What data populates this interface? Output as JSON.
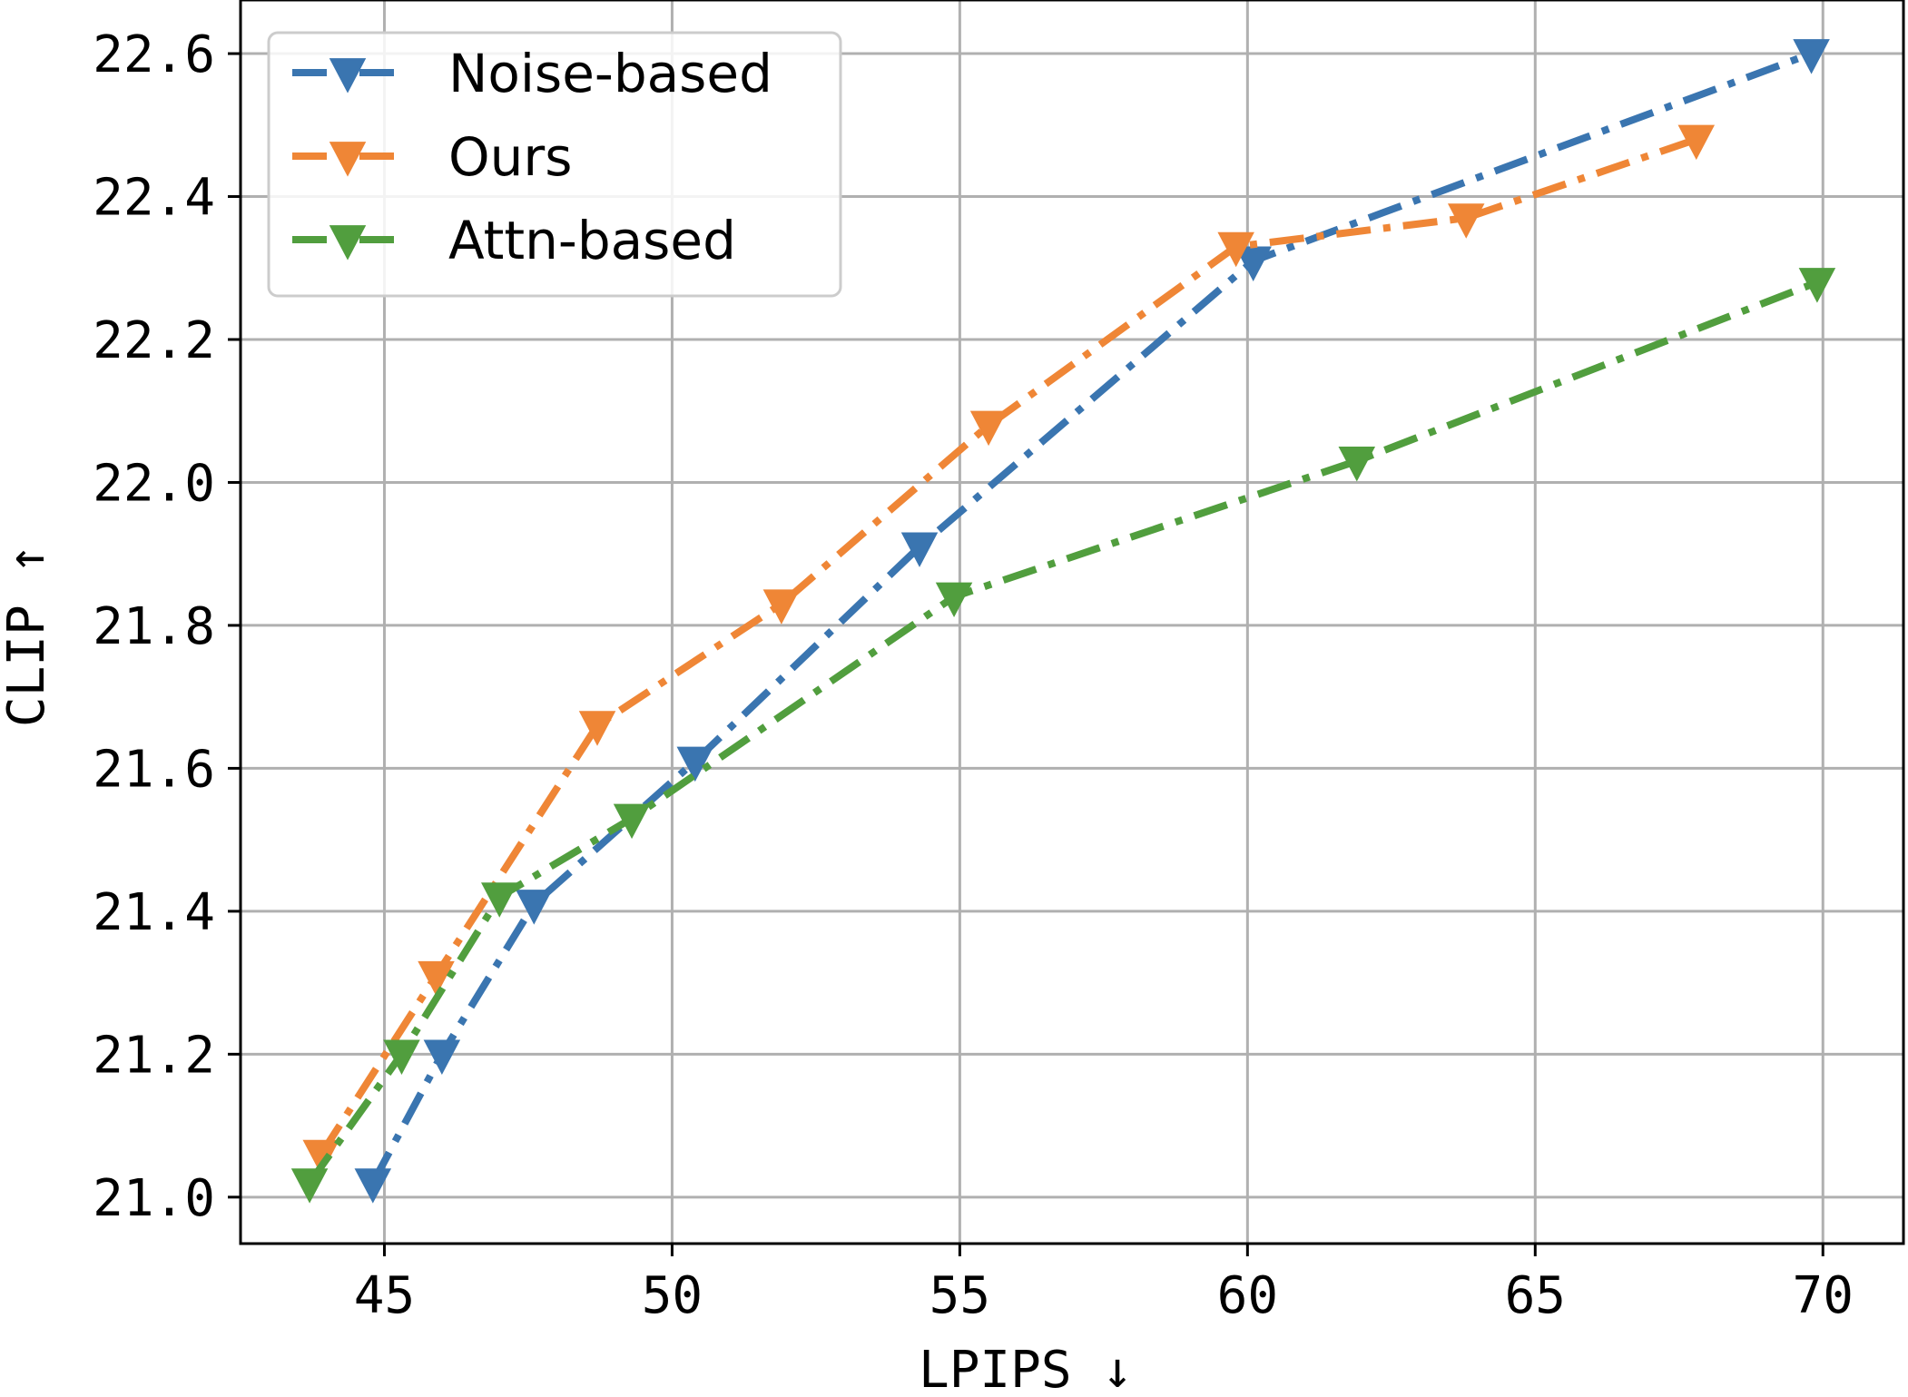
{
  "chart_data": {
    "type": "line",
    "title": "",
    "xlabel": "LPIPS ↓",
    "ylabel": "CLIP ↑",
    "xlim": [
      42.5,
      71.4
    ],
    "ylim": [
      20.935,
      22.675
    ],
    "xticks": [
      45,
      50,
      55,
      60,
      65,
      70
    ],
    "xtick_labels": [
      "45",
      "50",
      "55",
      "60",
      "65",
      "70"
    ],
    "yticks": [
      21.0,
      21.2,
      21.4,
      21.6,
      21.8,
      22.0,
      22.2,
      22.4,
      22.6
    ],
    "ytick_labels": [
      "21.0",
      "21.2",
      "21.4",
      "21.6",
      "21.8",
      "22.0",
      "22.2",
      "22.4",
      "22.6"
    ],
    "grid": true,
    "legend_position": "top-left",
    "line_style": "dash-dot",
    "marker": "triangle-down",
    "series": [
      {
        "name": "Noise-based",
        "color": "#3a75b0",
        "x": [
          44.8,
          46.0,
          47.6,
          50.4,
          54.3,
          60.1,
          69.8
        ],
        "y": [
          21.02,
          21.2,
          21.41,
          21.61,
          21.91,
          22.31,
          22.6
        ]
      },
      {
        "name": "Ours",
        "color": "#ef8636",
        "x": [
          43.9,
          45.9,
          48.7,
          51.9,
          55.5,
          59.8,
          63.8,
          67.8
        ],
        "y": [
          21.06,
          21.31,
          21.66,
          21.83,
          22.08,
          22.33,
          22.37,
          22.48
        ]
      },
      {
        "name": "Attn-based",
        "color": "#519e3e",
        "x": [
          43.7,
          45.3,
          47.0,
          49.3,
          54.9,
          61.9,
          69.9
        ],
        "y": [
          21.02,
          21.2,
          21.42,
          21.53,
          21.84,
          22.03,
          22.28
        ]
      }
    ]
  }
}
